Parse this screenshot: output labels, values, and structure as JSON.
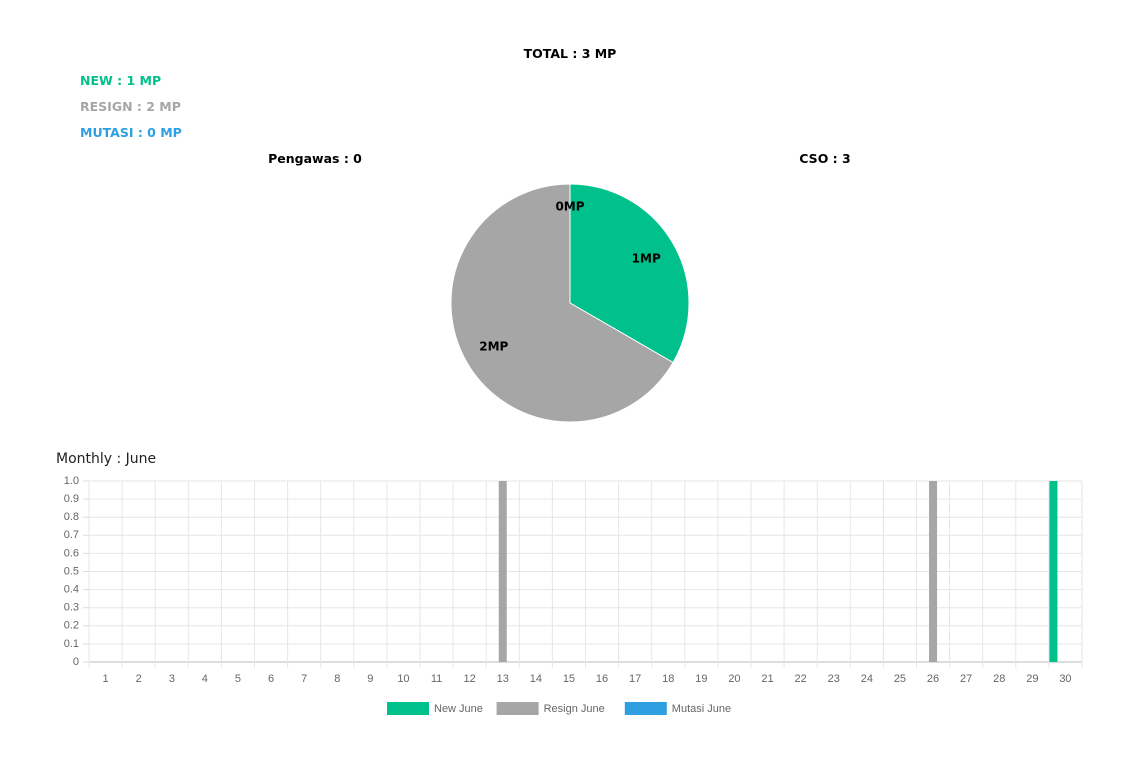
{
  "header": {
    "total": "TOTAL : 3 MP",
    "new": "NEW : 1 MP",
    "resign": "RESIGN : 2 MP",
    "mutasi": "MUTASI : 0 MP",
    "pengawas": "Pengawas : 0",
    "cso": "CSO : 3"
  },
  "chart_data": [
    {
      "type": "pie",
      "values": [
        1,
        2,
        0
      ],
      "value_labels": [
        "1MP",
        "2MP",
        "0MP"
      ],
      "colors": [
        "#00c08b",
        "#a6a6a6",
        "#2e9fe0"
      ]
    },
    {
      "type": "bar",
      "title": "Monthly : June",
      "categories": [
        "1",
        "2",
        "3",
        "4",
        "5",
        "6",
        "7",
        "8",
        "9",
        "10",
        "11",
        "12",
        "13",
        "14",
        "15",
        "16",
        "17",
        "18",
        "19",
        "20",
        "21",
        "22",
        "23",
        "24",
        "25",
        "26",
        "27",
        "28",
        "29",
        "30"
      ],
      "series": [
        {
          "name": "New June",
          "color": "#00c08b",
          "values": [
            0,
            0,
            0,
            0,
            0,
            0,
            0,
            0,
            0,
            0,
            0,
            0,
            0,
            0,
            0,
            0,
            0,
            0,
            0,
            0,
            0,
            0,
            0,
            0,
            0,
            0,
            0,
            0,
            0,
            1
          ]
        },
        {
          "name": "Resign June",
          "color": "#a6a6a6",
          "values": [
            0,
            0,
            0,
            0,
            0,
            0,
            0,
            0,
            0,
            0,
            0,
            0,
            1,
            0,
            0,
            0,
            0,
            0,
            0,
            0,
            0,
            0,
            0,
            0,
            0,
            1,
            0,
            0,
            0,
            0
          ]
        },
        {
          "name": "Mutasi June",
          "color": "#2e9fe0",
          "values": [
            0,
            0,
            0,
            0,
            0,
            0,
            0,
            0,
            0,
            0,
            0,
            0,
            0,
            0,
            0,
            0,
            0,
            0,
            0,
            0,
            0,
            0,
            0,
            0,
            0,
            0,
            0,
            0,
            0,
            0
          ]
        }
      ],
      "ylim": [
        0,
        1
      ],
      "yticks": [
        0,
        0.1,
        0.2,
        0.3,
        0.4,
        0.5,
        0.6,
        0.7,
        0.8,
        0.9,
        {
          "value": 1,
          "label": "1.0"
        }
      ],
      "grid": true
    }
  ]
}
